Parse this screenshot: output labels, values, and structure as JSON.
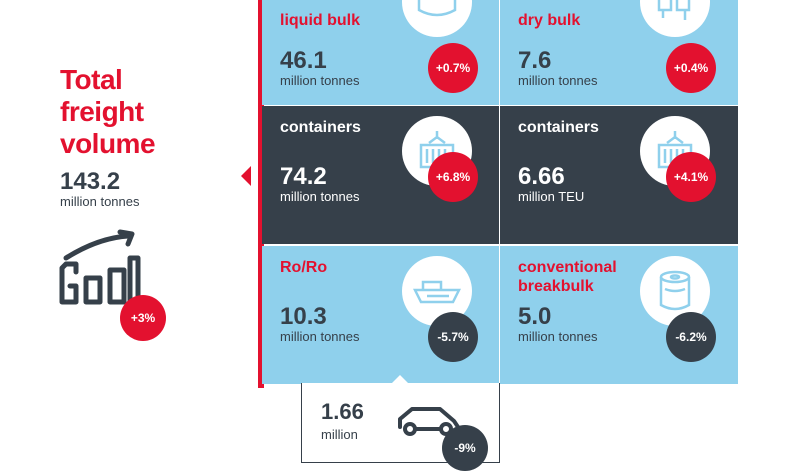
{
  "total": {
    "title": "Total\nfreight\nvolume",
    "value": "143.2",
    "unit": "million tonnes",
    "change": "+3%",
    "icon": "growth-chart-icon"
  },
  "tiles": [
    {
      "label": "liquid bulk",
      "value": "46.1",
      "unit": "million tonnes",
      "change": "+0.7%",
      "icon": "tank-icon"
    },
    {
      "label": "dry bulk",
      "value": "7.6",
      "unit": "million tonnes",
      "change": "+0.4%",
      "icon": "silo-icon"
    },
    {
      "label": "containers",
      "value": "74.2",
      "unit": "million tonnes",
      "change": "+6.8%",
      "icon": "container-crane-icon"
    },
    {
      "label": "containers",
      "value": "6.66",
      "unit": "million TEU",
      "change": "+4.1%",
      "icon": "container-crane-icon"
    },
    {
      "label": "Ro/Ro",
      "value": "10.3",
      "unit": "million tonnes",
      "change": "-5.7%",
      "icon": "ship-icon"
    },
    {
      "label": "conventional\nbreakbulk",
      "value": "5.0",
      "unit": "million tonnes",
      "change": "-6.2%",
      "icon": "paper-roll-icon"
    }
  ],
  "cars": {
    "value": "1.66",
    "unit": "million",
    "change": "-9%",
    "icon": "car-icon"
  },
  "colors": {
    "accent": "#e3112f",
    "dark": "#36404a",
    "light_blue": "#8fd0ec"
  }
}
